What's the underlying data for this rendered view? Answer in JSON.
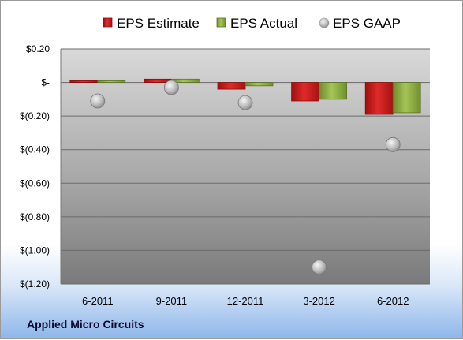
{
  "company": "Applied Micro Circuits",
  "chart_data": {
    "type": "bar",
    "categories": [
      "6-2011",
      "9-2011",
      "12-2011",
      "3-2012",
      "6-2012"
    ],
    "series": [
      {
        "name": "EPS Estimate",
        "type": "bar",
        "color": "#d11a1a",
        "values": [
          0.01,
          0.02,
          -0.04,
          -0.11,
          -0.19
        ]
      },
      {
        "name": "EPS Actual",
        "type": "bar",
        "color": "#8fb040",
        "values": [
          0.01,
          0.02,
          -0.02,
          -0.1,
          -0.18
        ]
      },
      {
        "name": "EPS GAAP",
        "type": "scatter",
        "color": "#bdbdbd",
        "values": [
          -0.11,
          -0.03,
          -0.12,
          -1.1,
          -0.37
        ]
      }
    ],
    "yticks": [
      {
        "value": 0.2,
        "label": "$0.20"
      },
      {
        "value": 0.0,
        "label": "$-"
      },
      {
        "value": -0.2,
        "label": "$(0.20)"
      },
      {
        "value": -0.4,
        "label": "$(0.40)"
      },
      {
        "value": -0.6,
        "label": "$(0.60)"
      },
      {
        "value": -0.8,
        "label": "$(0.80)"
      },
      {
        "value": -1.0,
        "label": "$(1.00)"
      },
      {
        "value": -1.2,
        "label": "$(1.20)"
      }
    ],
    "ylim": [
      -1.2,
      0.2
    ],
    "grid": true,
    "legend": "top"
  }
}
